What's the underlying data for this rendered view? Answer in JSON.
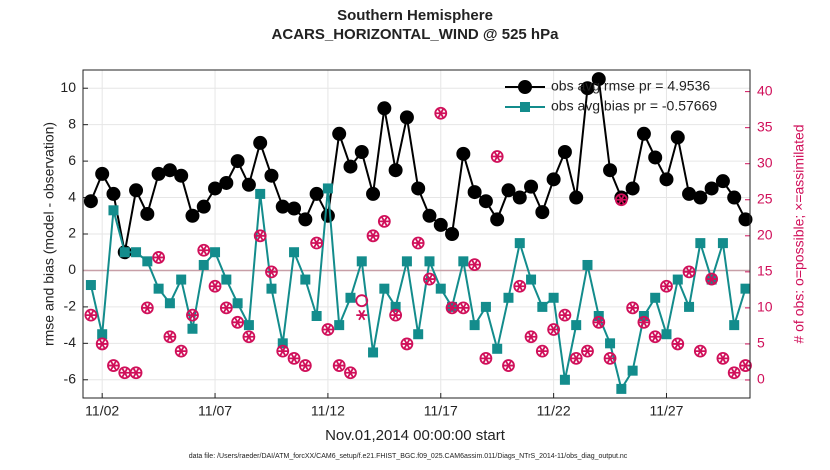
{
  "chart_data": {
    "type": "line",
    "title": "Southern Hemisphere",
    "subtitle": "ACARS_HORIZONTAL_WIND @ 525 hPa",
    "x_label": "Nov.01,2014 00:00:00 start",
    "y_label": "rmse and bias (model - observation)",
    "y2_label": "# of obs: o=possible; ×=assimilated",
    "footnote": "data file: /Users/raeder/DAI/ATM_forcXX/CAM6_setup/f.e21.FHIST_BGC.f09_025.CAM6assim.011/Diags_NTrS_2014-11/obs_diag_output.nc",
    "x": [
      0.5,
      1,
      1.5,
      2,
      2.5,
      3,
      3.5,
      4,
      4.5,
      5,
      5.5,
      6,
      6.5,
      7,
      7.5,
      8,
      8.5,
      9,
      9.5,
      10,
      10.5,
      11,
      11.5,
      12,
      12.5,
      13,
      13.5,
      14,
      14.5,
      15,
      15.5,
      16,
      16.5,
      17,
      17.5,
      18,
      18.5,
      19,
      19.5,
      20,
      20.5,
      21,
      21.5,
      22,
      22.5,
      23,
      23.5,
      24,
      24.5,
      25,
      25.5,
      26,
      26.5,
      27,
      27.5,
      28,
      28.5,
      29,
      29.5
    ],
    "xlim": [
      0.15,
      29.7
    ],
    "xticks": [
      {
        "value": 1,
        "label": "11/02"
      },
      {
        "value": 6,
        "label": "11/07"
      },
      {
        "value": 11,
        "label": "11/12"
      },
      {
        "value": 16,
        "label": "11/17"
      },
      {
        "value": 21,
        "label": "11/22"
      },
      {
        "value": 26,
        "label": "11/27"
      }
    ],
    "ylim": [
      -7,
      11
    ],
    "yticks": [
      -6,
      -4,
      -2,
      0,
      2,
      4,
      6,
      8,
      10
    ],
    "y2lim": [
      -2.5,
      43
    ],
    "y2ticks": [
      0,
      5,
      10,
      15,
      20,
      25,
      30,
      35,
      40
    ],
    "y2_color": "#d0105a",
    "grid": true,
    "legend": "northeast",
    "series": [
      {
        "name": "obs avg rmse pr = 4.9536",
        "color": "#000000",
        "marker": "circle",
        "line": true,
        "values": [
          3.8,
          5.3,
          4.2,
          1.0,
          4.4,
          3.1,
          5.3,
          5.5,
          5.2,
          3.0,
          3.5,
          4.5,
          4.8,
          6.0,
          4.7,
          7.0,
          5.2,
          3.5,
          3.4,
          2.8,
          4.2,
          3.0,
          7.5,
          5.7,
          6.5,
          4.2,
          8.9,
          5.5,
          8.4,
          4.5,
          3.0,
          2.5,
          2.0,
          6.4,
          4.3,
          3.8,
          2.8,
          4.4,
          4.0,
          4.6,
          3.2,
          5.0,
          6.5,
          4.0,
          10.0,
          10.5,
          5.5,
          4.0,
          4.5,
          7.5,
          6.2,
          5.0,
          7.3,
          4.2,
          4.0,
          4.5,
          4.9,
          4.0,
          2.8
        ]
      },
      {
        "name": "obs avg bias pr = -0.57669",
        "color": "#138c8c",
        "marker": "square",
        "line": true,
        "values": [
          -0.8,
          -3.5,
          3.3,
          1.0,
          1.0,
          0.5,
          -1.0,
          -1.8,
          -0.5,
          -3.2,
          0.3,
          1.0,
          -0.5,
          -1.8,
          -3.0,
          4.2,
          -1.0,
          -4.0,
          1.0,
          -0.5,
          -2.5,
          4.5,
          -3.0,
          -1.5,
          0.5,
          -4.5,
          -1.0,
          -2.0,
          0.5,
          -3.5,
          0.5,
          -1.0,
          -2.0,
          0.5,
          -3.0,
          -2.0,
          -4.3,
          -1.5,
          1.5,
          -0.5,
          -2.0,
          -1.5,
          -6.0,
          -3.0,
          0.3,
          -2.5,
          -4.0,
          -6.5,
          -5.5,
          -2.5,
          -1.5,
          -3.5,
          -0.5,
          -2.0,
          1.5,
          -0.5,
          1.5,
          -3.0,
          -1.0
        ]
      },
      {
        "color": "#d0105a",
        "marker": "open-circle",
        "line": false,
        "axis": "y2",
        "values": [
          9,
          5,
          2,
          1,
          1,
          10,
          17,
          6,
          4,
          9,
          18,
          13,
          10,
          8,
          6,
          20,
          15,
          4,
          3,
          2,
          19,
          7,
          2,
          1,
          11,
          20,
          22,
          9,
          5,
          19,
          14,
          37,
          10,
          10,
          16,
          3,
          31,
          2,
          13,
          6,
          4,
          7,
          9,
          3,
          4,
          8,
          3,
          25,
          10,
          8,
          6,
          13,
          5,
          15,
          4,
          14,
          3,
          1,
          2
        ]
      },
      {
        "color": "#d0105a",
        "marker": "asterisk",
        "line": false,
        "axis": "y2",
        "values": [
          9,
          5,
          2,
          1,
          1,
          10,
          17,
          6,
          4,
          9,
          18,
          13,
          10,
          8,
          6,
          20,
          15,
          4,
          3,
          2,
          19,
          7,
          2,
          1,
          9,
          20,
          22,
          9,
          5,
          19,
          14,
          37,
          10,
          10,
          16,
          3,
          31,
          2,
          13,
          6,
          4,
          7,
          9,
          3,
          4,
          8,
          3,
          25,
          10,
          8,
          6,
          13,
          5,
          15,
          4,
          14,
          3,
          1,
          2
        ]
      }
    ]
  }
}
